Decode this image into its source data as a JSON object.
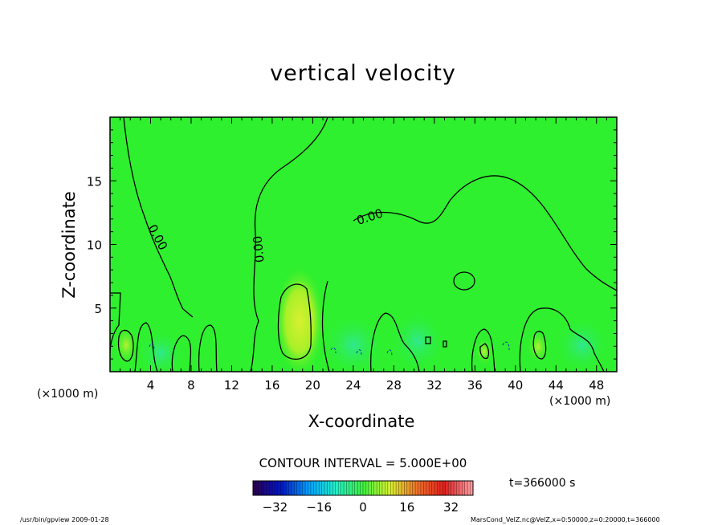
{
  "chart_data": {
    "type": "heatmap",
    "title": "vertical velocity",
    "xlabel": "X-coordinate",
    "ylabel": "Z-coordinate",
    "x_unit_label": "(×1000 m)",
    "xlim": [
      0,
      50
    ],
    "ylim": [
      0,
      20
    ],
    "x_ticks": [
      "4",
      "8",
      "12",
      "16",
      "20",
      "24",
      "28",
      "32",
      "36",
      "40",
      "44",
      "48"
    ],
    "x_tick_values": [
      4,
      8,
      12,
      16,
      20,
      24,
      28,
      32,
      36,
      40,
      44,
      48
    ],
    "y_ticks": [
      "5",
      "10",
      "15"
    ],
    "y_tick_values": [
      5,
      10,
      15
    ],
    "contour_label": "0.00",
    "contour_interval_text": "CONTOUR INTERVAL = 5.000E+00",
    "colorbar": {
      "ticks": [
        "−32",
        "−16",
        "0",
        "16",
        "32"
      ],
      "tick_values": [
        -32,
        -16,
        0,
        16,
        32
      ],
      "range": [
        -40,
        40
      ],
      "colormap": [
        "#2a0050",
        "#0018c8",
        "#00a0ff",
        "#22f0c8",
        "#40f040",
        "#d8f030",
        "#f07028",
        "#e02020",
        "#ff9aa0"
      ]
    },
    "updraft_cores": [
      {
        "x": 18.7,
        "z": 3.0,
        "note": "strong positive region (yellow)"
      },
      {
        "x": 1.5,
        "z": 2.0
      },
      {
        "x": 42.0,
        "z": 1.8
      },
      {
        "x": 36.0,
        "z": 1.5
      }
    ],
    "background_color": "#2ef02e"
  },
  "time_label": "t=366000 s",
  "footer": {
    "left": "/usr/bin/gpview   2009-01-28",
    "right": "MarsCond_VelZ.nc@VelZ,x=0:50000,z=0:20000,t=366000"
  }
}
